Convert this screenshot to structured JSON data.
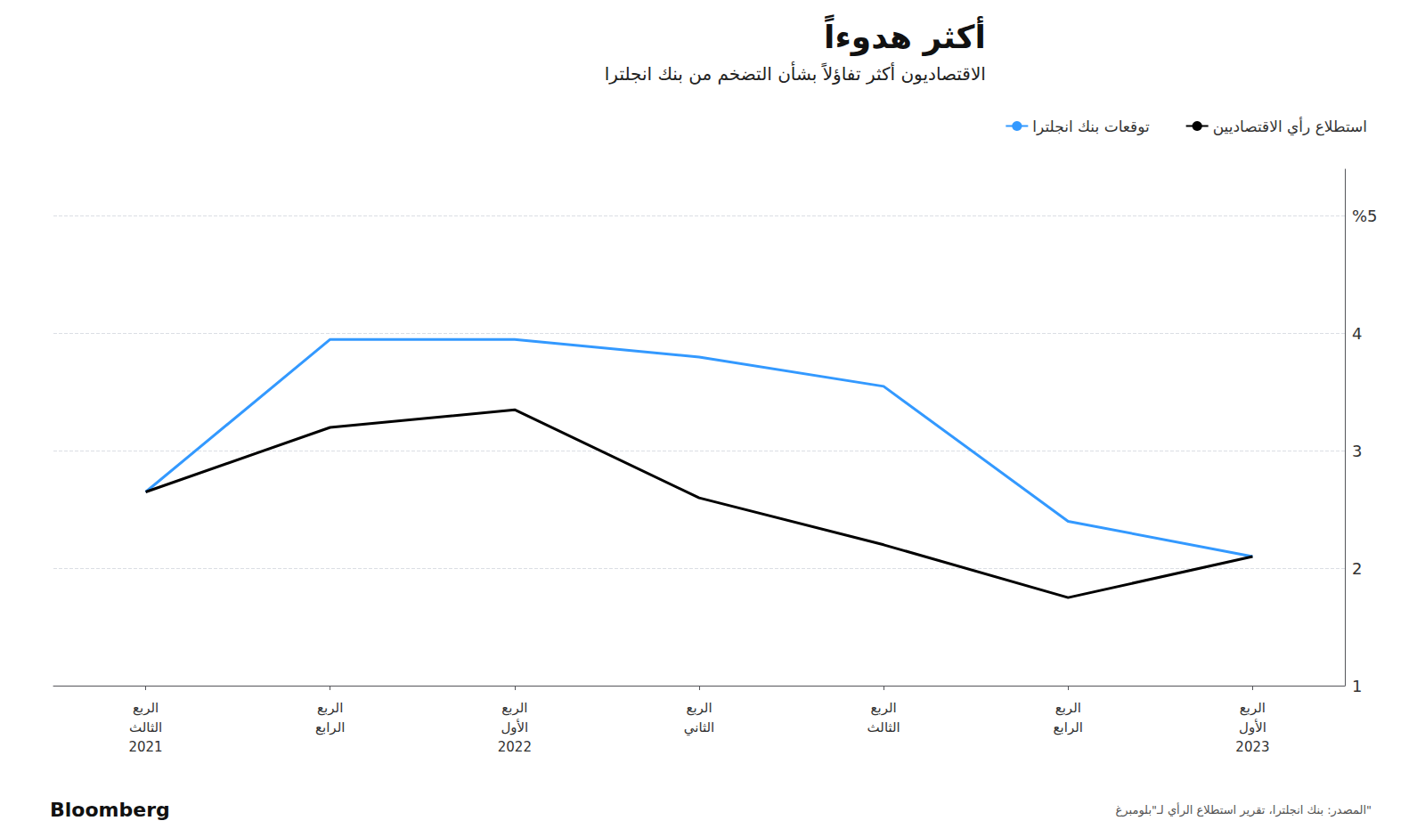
{
  "chart_data": {
    "type": "line",
    "title": "أكثر هدوءاً",
    "subtitle": "الاقتصاديون أكثر تفاؤلاً بشأن التضخم من بنك انجلترا",
    "categories": [
      "الربع\nالثالث\n2021",
      "الربع\nالرابع",
      "الربع\nالأول\n2022",
      "الربع\nالثاني",
      "الربع\nالثالث",
      "الربع\nالرابع",
      "الربع\nالأول\n2023"
    ],
    "series": [
      {
        "name": "توقعات بنك انجلترا",
        "color": "#3399ff",
        "values": [
          2.65,
          3.95,
          3.95,
          3.8,
          3.55,
          2.4,
          2.1
        ]
      },
      {
        "name": "استطلاع رأي الاقتصاديين",
        "color": "#000000",
        "values": [
          2.65,
          3.2,
          3.35,
          2.6,
          2.2,
          1.75,
          2.1
        ]
      }
    ],
    "ylim": [
      1.0,
      5.4
    ],
    "yticks": [
      1,
      2,
      3,
      4,
      {
        "value": 5,
        "label": "%5"
      }
    ],
    "grid": true,
    "legend": "top",
    "annotations": [
      "المصدر: بنك انجلترا، تقرير استطلاع الرأي لـ\"بلومبرغ\"",
      "Bloomberg"
    ]
  }
}
